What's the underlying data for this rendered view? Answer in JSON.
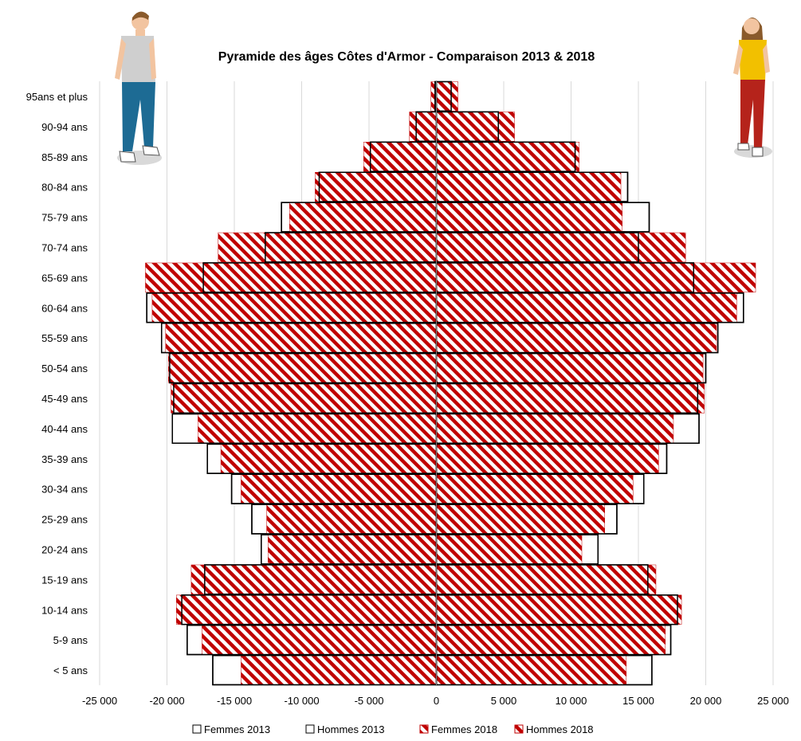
{
  "chart_data": {
    "type": "bar",
    "orientation": "horizontal",
    "title": "Pyramide des âges Côtes d'Armor - Comparaison  2013 & 2018",
    "categories": [
      "95ans et plus",
      "90-94 ans",
      "85-89 ans",
      "80-84 ans",
      "75-79 ans",
      "70-74 ans",
      "65-69 ans",
      "60-64 ans",
      "55-59 ans",
      "50-54 ans",
      "45-49 ans",
      "40-44 ans",
      "35-39 ans",
      "30-34 ans",
      "25-29 ans",
      "20-24 ans",
      "15-19 ans",
      "10-14 ans",
      "5-9 ans",
      "< 5 ans"
    ],
    "xlim": [
      -25000,
      25000
    ],
    "x_ticks": [
      -25000,
      -20000,
      -15000,
      -10000,
      -5000,
      0,
      5000,
      10000,
      15000,
      20000,
      25000
    ],
    "x_tick_labels": [
      "-25 000",
      "-20 000",
      "-15 000",
      "-10 000",
      "-5 000",
      "0",
      "5 000",
      "10 000",
      "15 000",
      "20 000",
      "25 000"
    ],
    "grid": "vertical",
    "legend_position": "bottom",
    "series": [
      {
        "name": "Femmes 2013",
        "style": "outline",
        "values": [
          -100,
          -1500,
          -4900,
          -8700,
          -11500,
          -12700,
          -17300,
          -21500,
          -20400,
          -19800,
          -19500,
          -19600,
          -17000,
          -15200,
          -13700,
          -13000,
          -17200,
          -18900,
          -18500,
          -16600
        ]
      },
      {
        "name": "Hommes 2013",
        "style": "outline",
        "values": [
          1100,
          4600,
          10300,
          14200,
          15800,
          15000,
          19100,
          22800,
          20900,
          20000,
          19400,
          19500,
          17100,
          15400,
          13400,
          12000,
          15700,
          17900,
          17400,
          16000
        ]
      },
      {
        "name": "Femmes 2018",
        "style": "hatched",
        "values": [
          -400,
          -2000,
          -5400,
          -9000,
          -10900,
          -16200,
          -21600,
          -21100,
          -20100,
          -19900,
          -19700,
          -17700,
          -16000,
          -14500,
          -12600,
          -12500,
          -18200,
          -19300,
          -17400,
          -14500
        ]
      },
      {
        "name": "Hommes 2018",
        "style": "hatched",
        "values": [
          1600,
          5800,
          10600,
          13700,
          13800,
          18500,
          23700,
          22300,
          20800,
          19800,
          19900,
          17600,
          16500,
          14600,
          12500,
          10800,
          16300,
          18200,
          17000,
          14100
        ]
      }
    ],
    "colors": {
      "hatch": "#c00000",
      "outline": "#000000",
      "grid": "#d9d9d9"
    }
  }
}
